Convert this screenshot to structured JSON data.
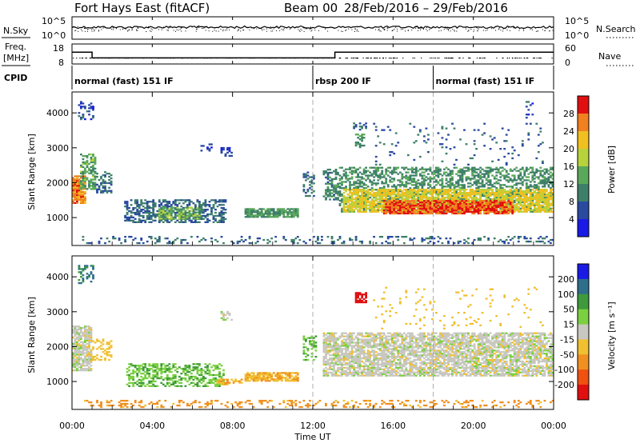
{
  "header": {
    "title": "Fort Hays East (fitACF)",
    "beam": "Beam 00",
    "dates": "28/Feb/2016 – 29/Feb/2016"
  },
  "status_panel": {
    "nsky_label": "N.Sky",
    "nsearch_label": "N.Search",
    "freq_label": "Freq.",
    "freq_unit": "[MHz]",
    "nave_label": "Nave",
    "cpid_label": "CPID",
    "nsky_ticks": [
      "10^5",
      "10^0"
    ],
    "nsearch_ticks": [
      "10^5",
      "10^0"
    ],
    "freq_ticks": [
      "18",
      "8"
    ],
    "nave_ticks": [
      "60",
      "0"
    ],
    "cpid_segments": [
      {
        "label": "normal (fast) 151 IF",
        "start": 0.0,
        "end": 12.0
      },
      {
        "label": "rbsp 200 IF",
        "start": 12.0,
        "end": 18.0
      },
      {
        "label": "normal (fast) 151 IF",
        "start": 18.0,
        "end": 24.0
      }
    ],
    "freq_trace": [
      {
        "start": 0.0,
        "end": 1.0,
        "value": 14.0
      },
      {
        "start": 1.0,
        "end": 13.1,
        "value": 10.0
      },
      {
        "start": 13.1,
        "end": 24.0,
        "value": 14.0
      }
    ]
  },
  "panels": {
    "power": {
      "ylabel": "Slant Range [km]",
      "cbar_label": "Power [dB]",
      "cbar_ticks": [
        "28",
        "24",
        "20",
        "16",
        "12",
        "8",
        "4"
      ]
    },
    "velocity": {
      "ylabel": "Slant Range [km]",
      "cbar_label": "Velocity [m s⁻¹]",
      "cbar_ticks": [
        "200",
        "100",
        "50",
        "15",
        "-15",
        "-50",
        "-100",
        "-200"
      ]
    },
    "xlabel": "Time UT"
  },
  "chart_data": {
    "type": "heatmap",
    "x_unit": "hours UT",
    "xlim": [
      0,
      24
    ],
    "ylim": [
      200,
      4600
    ],
    "xticks": [
      "00:00",
      "04:00",
      "08:00",
      "12:00",
      "16:00",
      "20:00",
      "00:00"
    ],
    "xtick_values": [
      0,
      4,
      8,
      12,
      16,
      20,
      24
    ],
    "yticks": [
      1000,
      2000,
      3000,
      4000
    ],
    "power_colorscale": {
      "range": [
        0,
        30
      ],
      "stops": [
        {
          "value": 2,
          "color": "#1a1ae6"
        },
        {
          "value": 6,
          "color": "#2a4aa0"
        },
        {
          "value": 10,
          "color": "#3e7f6a"
        },
        {
          "value": 14,
          "color": "#5aa85a"
        },
        {
          "value": 17,
          "color": "#b8d23c"
        },
        {
          "value": 20,
          "color": "#f0c020"
        },
        {
          "value": 24,
          "color": "#f08020"
        },
        {
          "value": 28,
          "color": "#e01010"
        }
      ]
    },
    "velocity_colorscale": {
      "range": [
        -250,
        250
      ],
      "stops": [
        {
          "value": 200,
          "color": "#1a1ae6"
        },
        {
          "value": 100,
          "color": "#2e6e8a"
        },
        {
          "value": 50,
          "color": "#3e9a3a"
        },
        {
          "value": 15,
          "color": "#7ad040"
        },
        {
          "value": 0,
          "color": "#c8c8c0"
        },
        {
          "value": -15,
          "color": "#f0c030"
        },
        {
          "value": -50,
          "color": "#f09020"
        },
        {
          "value": -100,
          "color": "#f05010"
        },
        {
          "value": -200,
          "color": "#e01010"
        }
      ]
    },
    "power_regions": [
      {
        "t": [
          0.0,
          0.7
        ],
        "range": [
          1400,
          2200
        ],
        "value": 24,
        "density": 0.9
      },
      {
        "t": [
          0.4,
          1.1
        ],
        "range": [
          1800,
          2800
        ],
        "value": 13,
        "density": 0.6
      },
      {
        "t": [
          1.2,
          2.0
        ],
        "range": [
          1700,
          2300
        ],
        "value": 9,
        "density": 0.45
      },
      {
        "t": [
          2.6,
          7.6
        ],
        "range": [
          850,
          1500
        ],
        "value": 8,
        "density": 0.55
      },
      {
        "t": [
          4.3,
          6.3
        ],
        "range": [
          950,
          1300
        ],
        "value": 14,
        "density": 0.6
      },
      {
        "t": [
          8.6,
          11.2
        ],
        "range": [
          1000,
          1250
        ],
        "value": 12,
        "density": 0.85
      },
      {
        "t": [
          11.5,
          12.0
        ],
        "range": [
          1600,
          2300
        ],
        "value": 9,
        "density": 0.35
      },
      {
        "t": [
          12.5,
          13.2
        ],
        "range": [
          1500,
          2400
        ],
        "value": 10,
        "density": 0.45
      },
      {
        "t": [
          13.3,
          24.0
        ],
        "range": [
          1150,
          2450
        ],
        "value": 11,
        "density": 0.5
      },
      {
        "t": [
          13.5,
          24.0
        ],
        "range": [
          1150,
          1800
        ],
        "value": 19,
        "density": 0.75
      },
      {
        "t": [
          15.5,
          22.0
        ],
        "range": [
          1100,
          1500
        ],
        "value": 26,
        "density": 0.8
      },
      {
        "t": [
          0.5,
          24.0
        ],
        "range": [
          250,
          450
        ],
        "value": 8,
        "density": 0.2
      },
      {
        "t": [
          0.3,
          1.0
        ],
        "range": [
          3800,
          4300
        ],
        "value": 6,
        "density": 0.3
      },
      {
        "t": [
          7.4,
          7.9
        ],
        "range": [
          2750,
          3000
        ],
        "value": 5,
        "density": 0.45
      },
      {
        "t": [
          6.4,
          6.9
        ],
        "range": [
          2900,
          3100
        ],
        "value": 5,
        "density": 0.35
      },
      {
        "t": [
          14.1,
          14.5
        ],
        "range": [
          3000,
          3400
        ],
        "value": 11,
        "density": 0.55
      },
      {
        "t": [
          14.0,
          14.6
        ],
        "range": [
          3500,
          3700
        ],
        "value": 7,
        "density": 0.35
      },
      {
        "t": [
          15.0,
          23.5
        ],
        "range": [
          2500,
          3700
        ],
        "value": 7,
        "density": 0.05
      },
      {
        "t": [
          22.5,
          23.0
        ],
        "range": [
          3800,
          4300
        ],
        "value": 6,
        "density": 0.15
      }
    ],
    "velocity_regions": [
      {
        "t": [
          0.0,
          0.9
        ],
        "range": [
          1300,
          2600
        ],
        "value": 0,
        "density": 0.75
      },
      {
        "t": [
          0.9,
          2.0
        ],
        "range": [
          1600,
          2200
        ],
        "value": -20,
        "density": 0.3
      },
      {
        "t": [
          2.7,
          7.5
        ],
        "range": [
          850,
          1500
        ],
        "value": 30,
        "density": 0.5
      },
      {
        "t": [
          7.2,
          8.4
        ],
        "range": [
          900,
          1050
        ],
        "value": -30,
        "density": 0.6
      },
      {
        "t": [
          8.6,
          11.2
        ],
        "range": [
          1000,
          1250
        ],
        "value": -30,
        "density": 0.8
      },
      {
        "t": [
          11.5,
          12.1
        ],
        "range": [
          1600,
          2300
        ],
        "value": 30,
        "density": 0.35
      },
      {
        "t": [
          12.5,
          24.0
        ],
        "range": [
          1150,
          2400
        ],
        "value": 0,
        "density": 0.75
      },
      {
        "t": [
          14.1,
          14.6
        ],
        "range": [
          3250,
          3550
        ],
        "value": -220,
        "density": 0.8
      },
      {
        "t": [
          0.5,
          24.0
        ],
        "range": [
          250,
          450
        ],
        "value": -40,
        "density": 0.25
      },
      {
        "t": [
          0.3,
          1.0
        ],
        "range": [
          3800,
          4300
        ],
        "value": 80,
        "density": 0.3
      },
      {
        "t": [
          7.4,
          7.9
        ],
        "range": [
          2750,
          3000
        ],
        "value": 0,
        "density": 0.4
      },
      {
        "t": [
          15.0,
          23.5
        ],
        "range": [
          2500,
          3700
        ],
        "value": -20,
        "density": 0.05
      }
    ]
  }
}
